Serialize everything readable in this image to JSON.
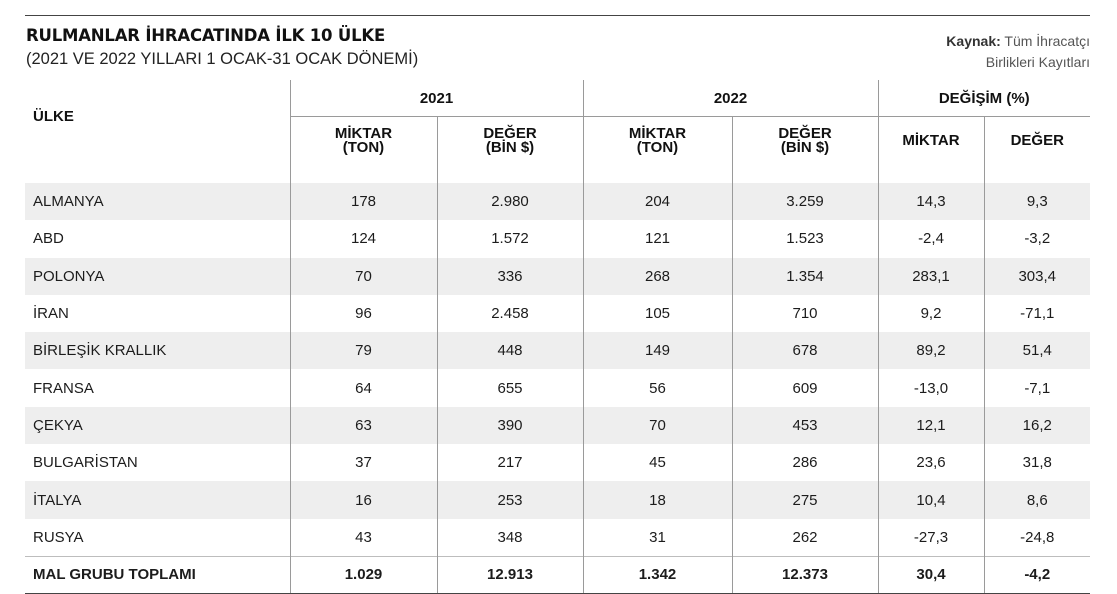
{
  "header": {
    "title": "RULMANLAR İHRACATINDA İLK 10 ÜLKE",
    "subtitle": "(2021 VE 2022 YILLARI 1 OCAK-31 OCAK DÖNEMİ)",
    "source_label": "Kaynak:",
    "source_line1": "Tüm İhracatçı",
    "source_line2": "Birlikleri Kayıtları"
  },
  "table": {
    "country_header": "ÜLKE",
    "year_2021": "2021",
    "year_2022": "2022",
    "change_header": "DEĞİŞİM (%)",
    "miktar_l1": "MİKTAR",
    "miktar_l2": "(TON)",
    "deger_l1": "DEĞER",
    "deger_l2": "(BİN $)",
    "change_miktar": "MİKTAR",
    "change_deger": "DEĞER",
    "rows": [
      [
        "ALMANYA",
        "178",
        "2.980",
        "204",
        "3.259",
        "14,3",
        "9,3"
      ],
      [
        "ABD",
        "124",
        "1.572",
        "121",
        "1.523",
        "-2,4",
        "-3,2"
      ],
      [
        "POLONYA",
        "70",
        "336",
        "268",
        "1.354",
        "283,1",
        "303,4"
      ],
      [
        "İRAN",
        "96",
        "2.458",
        "105",
        "710",
        "9,2",
        "-71,1"
      ],
      [
        "BİRLEŞİK KRALLIK",
        "79",
        "448",
        "149",
        "678",
        "89,2",
        "51,4"
      ],
      [
        "FRANSA",
        "64",
        "655",
        "56",
        "609",
        "-13,0",
        "-7,1"
      ],
      [
        "ÇEKYA",
        "63",
        "390",
        "70",
        "453",
        "12,1",
        "16,2"
      ],
      [
        "BULGARİSTAN",
        "37",
        "217",
        "45",
        "286",
        "23,6",
        "31,8"
      ],
      [
        "İTALYA",
        "16",
        "253",
        "18",
        "275",
        "10,4",
        "8,6"
      ],
      [
        "RUSYA",
        "43",
        "348",
        "31",
        "262",
        "-27,3",
        "-24,8"
      ]
    ],
    "total": [
      "MAL GRUBU TOPLAMI",
      "1.029",
      "12.913",
      "1.342",
      "12.373",
      "30,4",
      "-4,2"
    ]
  }
}
